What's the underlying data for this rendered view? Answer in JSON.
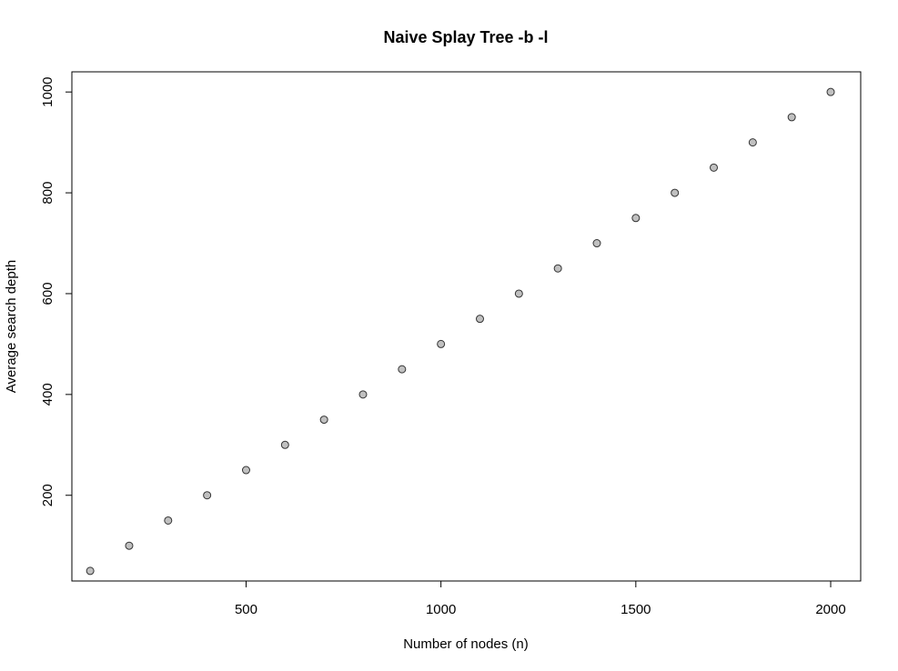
{
  "chart_data": {
    "type": "scatter",
    "title": "Naive Splay Tree -b -l",
    "xlabel": "Number of nodes (n)",
    "ylabel": "Average search depth",
    "xlim": [
      53,
      2077
    ],
    "ylim": [
      30,
      1040
    ],
    "x_ticks": [
      500,
      1000,
      1500,
      2000
    ],
    "y_ticks": [
      200,
      400,
      600,
      800,
      1000
    ],
    "grid": false,
    "legend": "none",
    "marker_fill": "#c0c0c0",
    "marker_stroke": "#333333",
    "series": [
      {
        "x": [
          100,
          200,
          300,
          400,
          500,
          600,
          700,
          800,
          900,
          1000,
          1100,
          1200,
          1300,
          1400,
          1500,
          1600,
          1700,
          1800,
          1900,
          2000
        ],
        "y": [
          50,
          100,
          150,
          200,
          250,
          300,
          350,
          400,
          450,
          500,
          550,
          600,
          650,
          700,
          750,
          800,
          850,
          900,
          950,
          1000
        ]
      }
    ]
  }
}
